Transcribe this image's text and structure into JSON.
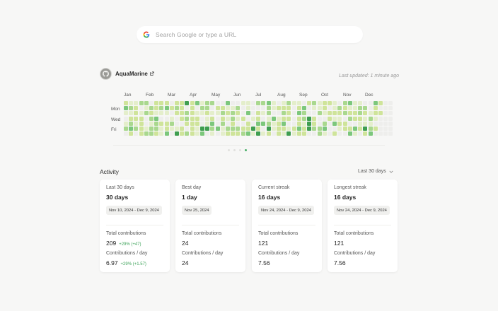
{
  "search": {
    "placeholder": "Search Google or type a URL"
  },
  "profile": {
    "username": "AquaMarine",
    "last_updated": "Last updated: 1 minute ago"
  },
  "heatmap": {
    "months": [
      "Jan",
      "Feb",
      "Mar",
      "Apr",
      "May",
      "Jun",
      "Jul",
      "Aug",
      "Sep",
      "Oct",
      "Nov",
      "Dec"
    ],
    "day_labels": [
      "Mon",
      "Wed",
      "Fri"
    ],
    "page_dots": 4,
    "active_dot": 3,
    "colors": [
      "#eeeeec",
      "#e4eecb",
      "#cfe49a",
      "#a9d88e",
      "#7cc77c",
      "#3f9e50"
    ]
  },
  "activity": {
    "title": "Activity",
    "range_label": "Last 30 days",
    "cards": [
      {
        "label": "Last 30 days",
        "value": "30 days",
        "pill": "Nov 10, 2024 - Dec 9, 2024",
        "total_label": "Total contributions",
        "total_value": "209",
        "total_delta": "+29% (+47)",
        "perday_label": "Contributions / day",
        "perday_value": "6.97",
        "perday_delta": "+29% (+1.57)"
      },
      {
        "label": "Best day",
        "value": "1 day",
        "pill": "Nov 25, 2024",
        "total_label": "Total contributions",
        "total_value": "24",
        "total_delta": "",
        "perday_label": "Contributions / day",
        "perday_value": "24",
        "perday_delta": ""
      },
      {
        "label": "Current streak",
        "value": "16 days",
        "pill": "Nov 24, 2024 - Dec 9, 2024",
        "total_label": "Total contributions",
        "total_value": "121",
        "total_delta": "",
        "perday_label": "Contributions / day",
        "perday_value": "7.56",
        "perday_delta": ""
      },
      {
        "label": "Longest streak",
        "value": "16 days",
        "pill": "Nov 24, 2024 - Dec 9, 2024",
        "total_label": "Total contributions",
        "total_value": "121",
        "total_delta": "",
        "perday_label": "Contributions / day",
        "perday_value": "7.56",
        "perday_delta": ""
      }
    ]
  }
}
